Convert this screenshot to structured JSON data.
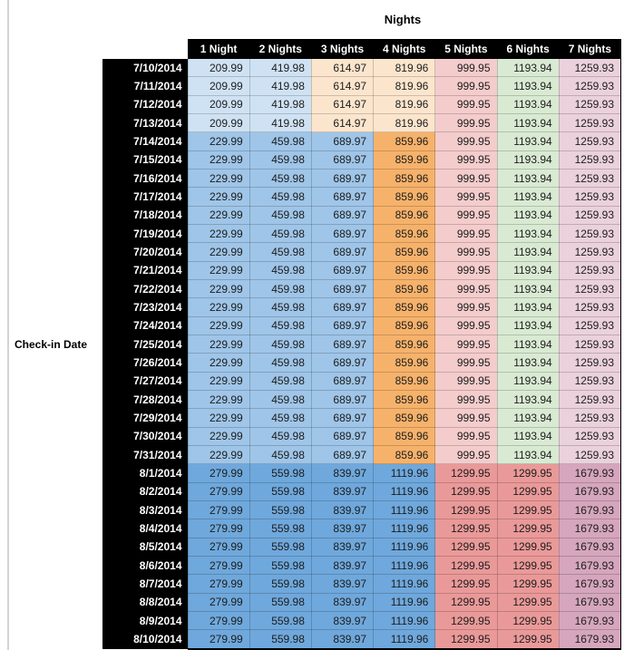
{
  "page": {
    "background": "#ffffff",
    "page_edge_color": "#d4d4d4"
  },
  "chart_data": {
    "type": "table",
    "title": "Nights",
    "row_header_label": "Check-in Date",
    "header_bg": "#000000",
    "header_text_color": "#ffffff",
    "columns": [
      "1 Night",
      "2 Nights",
      "3 Nights",
      "4 Nights",
      "5 Nights",
      "6 Nights",
      "7 Nights"
    ],
    "sections": [
      {
        "name": "early-july",
        "dates": [
          "7/10/2014",
          "7/11/2014",
          "7/12/2014",
          "7/13/2014"
        ],
        "values": [
          "209.99",
          "419.98",
          "614.97",
          "819.96",
          "999.95",
          "1193.94",
          "1259.93"
        ],
        "cell_colors": [
          "#cfe2f3",
          "#cfe2f3",
          "#fce5cd",
          "#fce5cd",
          "#f4cccc",
          "#d9ead3",
          "#ead1dc"
        ]
      },
      {
        "name": "mid-late-july",
        "dates": [
          "7/14/2014",
          "7/15/2014",
          "7/16/2014",
          "7/17/2014",
          "7/18/2014",
          "7/19/2014",
          "7/20/2014",
          "7/21/2014",
          "7/22/2014",
          "7/23/2014",
          "7/24/2014",
          "7/25/2014",
          "7/26/2014",
          "7/27/2014",
          "7/28/2014",
          "7/29/2014",
          "7/30/2014",
          "7/31/2014"
        ],
        "values": [
          "229.99",
          "459.98",
          "689.97",
          "859.96",
          "999.95",
          "1193.94",
          "1259.93"
        ],
        "cell_colors": [
          "#9fc5e8",
          "#9fc5e8",
          "#9fc5e8",
          "#f6b26b",
          "#f4cccc",
          "#d9ead3",
          "#ead1dc"
        ]
      },
      {
        "name": "august",
        "dates": [
          "8/1/2014",
          "8/2/2014",
          "8/3/2014",
          "8/4/2014",
          "8/5/2014",
          "8/6/2014",
          "8/7/2014",
          "8/8/2014",
          "8/9/2014",
          "8/10/2014"
        ],
        "values": [
          "279.99",
          "559.98",
          "839.97",
          "1119.96",
          "1299.95",
          "1299.95",
          "1679.93"
        ],
        "cell_colors": [
          "#6fa8dc",
          "#6fa8dc",
          "#6fa8dc",
          "#6fa8dc",
          "#ea9999",
          "#ea9999",
          "#d5a6bd"
        ]
      }
    ]
  }
}
